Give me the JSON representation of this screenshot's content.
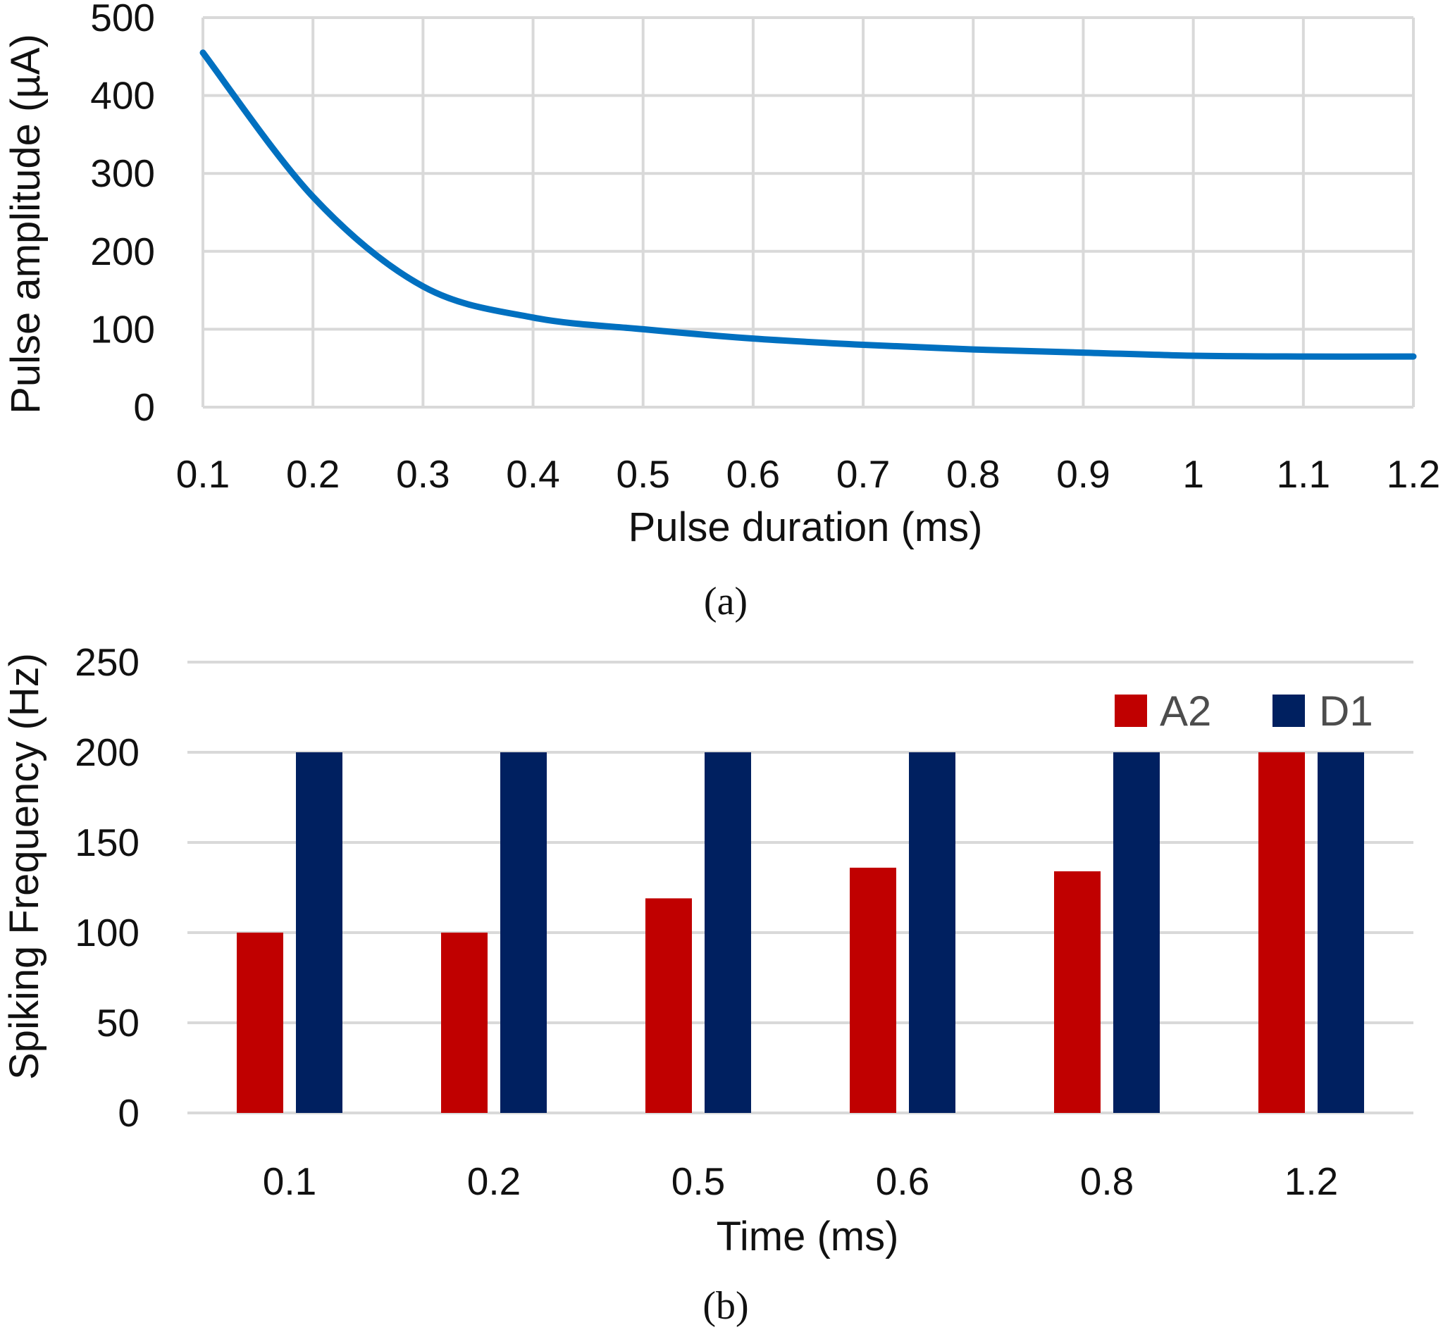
{
  "chart_data": [
    {
      "type": "line",
      "caption": "(a)",
      "xlabel": "Pulse duration (ms)",
      "ylabel": "Pulse amplitude (µA)",
      "x_tick_labels": [
        "0.1",
        "0.2",
        "0.3",
        "0.4",
        "0.5",
        "0.6",
        "0.7",
        "0.8",
        "0.9",
        "1",
        "1.1",
        "1.2"
      ],
      "y_tick_labels": [
        "0",
        "100",
        "200",
        "300",
        "400",
        "500"
      ],
      "xlim": [
        0.1,
        1.2
      ],
      "ylim": [
        0,
        500
      ],
      "grid": true,
      "series": [
        {
          "name": "Pulse amplitude",
          "color": "#0070c0",
          "x": [
            0.1,
            0.2,
            0.3,
            0.4,
            0.5,
            0.6,
            0.7,
            0.8,
            0.9,
            1.0,
            1.1,
            1.2
          ],
          "y": [
            455,
            270,
            155,
            115,
            100,
            88,
            80,
            74,
            70,
            66,
            65,
            65
          ]
        }
      ]
    },
    {
      "type": "bar",
      "caption": "(b)",
      "xlabel": "Time (ms)",
      "ylabel": "Spiking Frequency (Hz)",
      "categories": [
        "0.1",
        "0.2",
        "0.5",
        "0.6",
        "0.8",
        "1.2"
      ],
      "y_tick_labels": [
        "0",
        "50",
        "100",
        "150",
        "200",
        "250"
      ],
      "ylim": [
        0,
        250
      ],
      "grid": true,
      "legend_position": "top-right",
      "series": [
        {
          "name": "A2",
          "color": "#c00000",
          "values": [
            100,
            100,
            119,
            136,
            134,
            200
          ]
        },
        {
          "name": "D1",
          "color": "#002060",
          "values": [
            200,
            200,
            200,
            200,
            200,
            200
          ]
        }
      ]
    }
  ]
}
